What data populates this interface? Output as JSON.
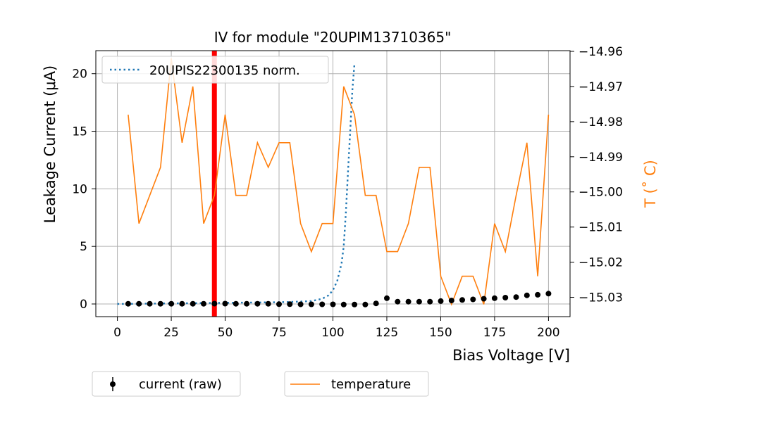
{
  "chart_data": {
    "type": "line",
    "title": "IV for module \"20UPIM13710365\"",
    "xlabel": "Bias Voltage [V]",
    "ylabel_left": "Leakage Current (μA)",
    "ylabel_right": "T (˚ C)",
    "xlim": [
      -10,
      210
    ],
    "ylim_left": [
      -1.1,
      22
    ],
    "ylim_right": [
      -15.0355,
      -14.9598
    ],
    "x_ticks": [
      0,
      25,
      50,
      75,
      100,
      125,
      150,
      175,
      200
    ],
    "x_tick_labels": [
      "0",
      "25",
      "50",
      "75",
      "100",
      "125",
      "150",
      "175",
      "200"
    ],
    "y_left_ticks": [
      0,
      5,
      10,
      15,
      20
    ],
    "y_left_tick_labels": [
      "0",
      "5",
      "10",
      "15",
      "20"
    ],
    "y_right_ticks": [
      -14.96,
      -14.97,
      -14.98,
      -14.99,
      -15.0,
      -15.01,
      -15.02,
      -15.03
    ],
    "y_right_tick_labels": [
      "−14.96",
      "−14.97",
      "−14.98",
      "−14.99",
      "−15.00",
      "−15.01",
      "−15.02",
      "−15.03"
    ],
    "grid": true,
    "vertical_marker": {
      "x": 45,
      "color": "#ff0000"
    },
    "series": [
      {
        "name": "20UPIS22300135 norm.",
        "style": "dotted",
        "color": "#1f77b4",
        "x": [
          0,
          10,
          20,
          30,
          40,
          50,
          60,
          70,
          80,
          90,
          95,
          98,
          100,
          102,
          104,
          105,
          106,
          107,
          108,
          109,
          110
        ],
        "y": [
          0.0,
          0.02,
          0.04,
          0.06,
          0.08,
          0.1,
          0.12,
          0.14,
          0.17,
          0.25,
          0.45,
          0.75,
          1.2,
          2.0,
          3.5,
          5.0,
          8.0,
          11.5,
          15.0,
          18.5,
          20.9
        ]
      },
      {
        "name": "current (raw)",
        "style": "markers",
        "color": "#000000",
        "x": [
          5,
          10,
          15,
          20,
          25,
          30,
          35,
          40,
          45,
          50,
          55,
          60,
          65,
          70,
          75,
          80,
          85,
          90,
          95,
          100,
          105,
          110,
          115,
          120,
          125,
          130,
          135,
          140,
          145,
          150,
          155,
          160,
          165,
          170,
          175,
          180,
          185,
          190,
          195,
          200
        ],
        "y": [
          0.02,
          0.02,
          0.02,
          0.02,
          0.02,
          0.02,
          0.02,
          0.02,
          0.03,
          0.03,
          0.02,
          0.02,
          0.02,
          0.02,
          -0.02,
          -0.02,
          -0.03,
          -0.03,
          -0.03,
          -0.03,
          -0.05,
          -0.05,
          -0.05,
          0.05,
          0.5,
          0.2,
          0.2,
          0.2,
          0.2,
          0.25,
          0.3,
          0.35,
          0.4,
          0.45,
          0.5,
          0.55,
          0.6,
          0.75,
          0.8,
          0.9
        ]
      },
      {
        "name": "temperature",
        "style": "line",
        "color": "#ff7f0e",
        "axis": "right",
        "x": [
          5,
          10,
          15,
          20,
          25,
          30,
          35,
          40,
          45,
          50,
          55,
          60,
          65,
          70,
          75,
          80,
          85,
          90,
          95,
          100,
          105,
          110,
          115,
          120,
          125,
          130,
          135,
          140,
          145,
          150,
          155,
          160,
          165,
          170,
          175,
          180,
          185,
          190,
          195,
          200
        ],
        "y": [
          -14.978,
          -15.009,
          -15.001,
          -14.993,
          -14.962,
          -14.986,
          -14.97,
          -15.009,
          -15.001,
          -14.978,
          -15.001,
          -15.001,
          -14.986,
          -14.993,
          -14.986,
          -14.986,
          -15.009,
          -15.017,
          -15.009,
          -15.009,
          -14.97,
          -14.978,
          -15.001,
          -15.001,
          -15.017,
          -15.017,
          -15.009,
          -14.993,
          -14.993,
          -15.024,
          -15.032,
          -15.024,
          -15.024,
          -15.032,
          -15.009,
          -15.017,
          -15.001,
          -14.986,
          -15.024,
          -14.978
        ]
      }
    ],
    "legends": [
      {
        "entries": [
          "20UPIS22300135 norm."
        ],
        "placement": "upper-left inside"
      },
      {
        "entries": [
          "current (raw)"
        ],
        "placement": "below-left"
      },
      {
        "entries": [
          "temperature"
        ],
        "placement": "below-center"
      }
    ]
  },
  "colors": {
    "axis": "#000000",
    "grid": "#b0b0b0",
    "current_norm": "#1f77b4",
    "temperature": "#ff7f0e",
    "raw": "#000000",
    "marker": "#ff0000"
  }
}
